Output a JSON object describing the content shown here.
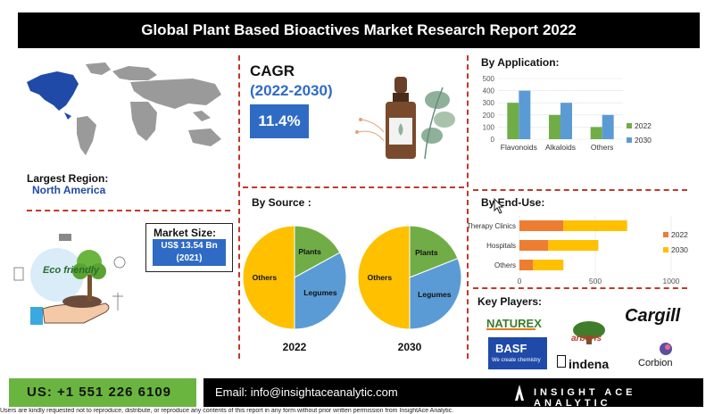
{
  "title": "Global Plant Based Bioactives Market Research Report 2022",
  "largest_region": {
    "label": "Largest Region:",
    "value": "North America"
  },
  "cagr": {
    "label": "CAGR",
    "years": "(2022-2030)",
    "value": "11.4%"
  },
  "market_size": {
    "label": "Market Size:",
    "value_line1": "US$ 13.54 Bn",
    "value_line2": "(2021)"
  },
  "eco_text": "Eco friendly",
  "by_source": {
    "heading": "By Source :",
    "year_labels": [
      "2022",
      "2030"
    ]
  },
  "by_application": {
    "heading": "By Application:"
  },
  "by_end_use": {
    "heading": "By End-Use:"
  },
  "key_players": {
    "heading": "Key Players:",
    "logos": [
      "NATUREX",
      "Cargill",
      "BASF",
      "We create chemistry",
      "arboris",
      "indena",
      "Corbion"
    ]
  },
  "footer": {
    "phone": "US: +1 551 226 6109",
    "email": "Email: info@insightaceanalytic.com",
    "brand": "INSIGHT ACE ANALYTIC",
    "disclaimer": "Users are kindly requested not to reproduce, distribute, or reproduce any contents of this report in any form without prior written permission from InsightAce Analytic."
  },
  "colors": {
    "accent_blue": "#2f6bc4",
    "green": "#6ab540",
    "orange": "#ed7d31",
    "yellow": "#ffc000",
    "divider": "#c0392b"
  },
  "chart_data": [
    {
      "type": "bar",
      "title": "By Application:",
      "categories": [
        "Flavonoids",
        "Alkaloids",
        "Others"
      ],
      "series": [
        {
          "name": "2022",
          "values": [
            300,
            200,
            100
          ],
          "color": "#70ad47"
        },
        {
          "name": "2030",
          "values": [
            400,
            300,
            200
          ],
          "color": "#5b9bd5"
        }
      ],
      "ylim": [
        0,
        500
      ],
      "yticks": [
        "0",
        "100",
        "200",
        "300",
        "400",
        "500"
      ],
      "legend": "right"
    },
    {
      "type": "bar",
      "orientation": "horizontal",
      "stacked": true,
      "title": "By End-Use:",
      "categories": [
        "Therapy Clinics",
        "Hospitals",
        "Others"
      ],
      "series": [
        {
          "name": "2022",
          "values": [
            290,
            190,
            90
          ],
          "color": "#ed7d31"
        },
        {
          "name": "2030",
          "values": [
            420,
            330,
            200
          ],
          "color": "#ffc000"
        }
      ],
      "xlim": [
        0,
        1000
      ],
      "xticks": [
        "0",
        "500",
        "1000"
      ],
      "legend": "right"
    },
    {
      "type": "pie",
      "title": "2022",
      "labels": [
        "Plants",
        "Legumes",
        "Others"
      ],
      "values": [
        17,
        33,
        50
      ],
      "colors": [
        "#70ad47",
        "#5b9bd5",
        "#ffc000"
      ]
    },
    {
      "type": "pie",
      "title": "2030",
      "labels": [
        "Plants",
        "Legumes",
        "Others"
      ],
      "values": [
        19,
        31,
        50
      ],
      "colors": [
        "#70ad47",
        "#5b9bd5",
        "#ffc000"
      ]
    }
  ]
}
